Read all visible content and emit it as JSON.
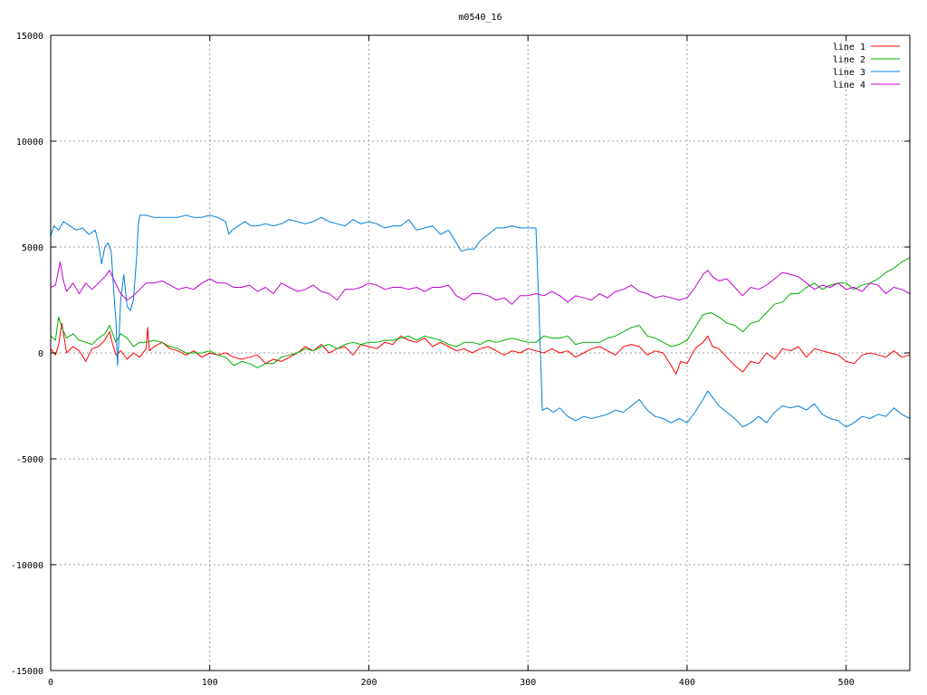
{
  "chart_data": {
    "type": "line",
    "title": "m0540_16",
    "xlim": [
      0,
      540
    ],
    "ylim": [
      -15000,
      15000
    ],
    "grid": true,
    "legend_position": "top-right",
    "xticks": [
      0,
      100,
      200,
      300,
      400,
      500
    ],
    "yticks": [
      -15000,
      -10000,
      -5000,
      0,
      5000,
      10000,
      15000
    ],
    "series": [
      {
        "name": "line 1",
        "color": "#ff0000",
        "x": [
          0,
          3,
          5,
          7,
          10,
          14,
          18,
          22,
          26,
          30,
          34,
          37,
          39,
          41,
          44,
          48,
          52,
          56,
          60,
          61,
          62,
          65,
          70,
          75,
          80,
          85,
          90,
          95,
          100,
          105,
          110,
          115,
          120,
          125,
          130,
          135,
          140,
          145,
          150,
          155,
          160,
          165,
          170,
          175,
          180,
          185,
          190,
          195,
          200,
          205,
          210,
          215,
          220,
          225,
          230,
          235,
          240,
          245,
          250,
          255,
          260,
          265,
          270,
          275,
          280,
          285,
          290,
          295,
          300,
          305,
          310,
          315,
          320,
          325,
          330,
          335,
          340,
          345,
          350,
          355,
          360,
          365,
          370,
          375,
          380,
          385,
          390,
          393,
          396,
          400,
          405,
          410,
          413,
          416,
          420,
          425,
          430,
          435,
          440,
          445,
          450,
          455,
          460,
          465,
          470,
          475,
          480,
          485,
          490,
          495,
          500,
          505,
          510,
          515,
          520,
          525,
          530,
          535,
          540
        ],
        "y": [
          200,
          -100,
          400,
          1400,
          0,
          300,
          100,
          -400,
          200,
          300,
          600,
          1000,
          400,
          -100,
          100,
          -300,
          0,
          -200,
          200,
          1200,
          100,
          300,
          500,
          200,
          100,
          -100,
          100,
          -200,
          0,
          -100,
          0,
          -200,
          -300,
          -200,
          -100,
          -500,
          -300,
          -400,
          -200,
          0,
          300,
          100,
          400,
          0,
          200,
          300,
          -100,
          400,
          300,
          200,
          500,
          400,
          800,
          600,
          500,
          700,
          300,
          500,
          300,
          100,
          200,
          0,
          200,
          300,
          100,
          -100,
          100,
          0,
          200,
          100,
          0,
          200,
          0,
          100,
          -200,
          0,
          200,
          300,
          100,
          -100,
          300,
          400,
          300,
          -100,
          100,
          0,
          -600,
          -1000,
          -400,
          -500,
          200,
          500,
          800,
          300,
          200,
          -200,
          -600,
          -900,
          -400,
          -500,
          0,
          -300,
          200,
          100,
          300,
          -200,
          200,
          100,
          0,
          -100,
          -400,
          -500,
          -100,
          0,
          -100,
          -200,
          100,
          -200,
          -100
        ]
      },
      {
        "name": "line 2",
        "color": "#00b000",
        "x": [
          0,
          3,
          5,
          7,
          10,
          14,
          18,
          22,
          26,
          30,
          34,
          37,
          39,
          41,
          44,
          48,
          52,
          56,
          60,
          65,
          70,
          75,
          80,
          85,
          90,
          95,
          100,
          105,
          110,
          115,
          120,
          125,
          130,
          135,
          140,
          145,
          150,
          155,
          160,
          165,
          170,
          175,
          180,
          185,
          190,
          195,
          200,
          205,
          210,
          215,
          220,
          225,
          230,
          235,
          240,
          245,
          250,
          255,
          260,
          265,
          270,
          275,
          280,
          285,
          290,
          295,
          300,
          305,
          310,
          315,
          320,
          325,
          330,
          335,
          340,
          345,
          350,
          355,
          360,
          365,
          370,
          375,
          380,
          385,
          390,
          395,
          400,
          405,
          410,
          415,
          420,
          425,
          430,
          435,
          440,
          445,
          450,
          455,
          460,
          465,
          470,
          475,
          480,
          485,
          490,
          495,
          500,
          505,
          510,
          515,
          520,
          525,
          530,
          535,
          540
        ],
        "y": [
          800,
          600,
          1700,
          1200,
          700,
          900,
          600,
          500,
          400,
          700,
          900,
          1300,
          900,
          500,
          900,
          700,
          300,
          500,
          500,
          600,
          500,
          300,
          200,
          0,
          0,
          0,
          100,
          -100,
          -200,
          -600,
          -400,
          -500,
          -700,
          -500,
          -500,
          -200,
          -100,
          0,
          200,
          100,
          300,
          400,
          200,
          400,
          500,
          400,
          500,
          500,
          600,
          600,
          700,
          800,
          600,
          800,
          700,
          600,
          400,
          300,
          500,
          500,
          400,
          600,
          500,
          600,
          700,
          600,
          500,
          500,
          800,
          700,
          700,
          800,
          400,
          500,
          500,
          500,
          700,
          800,
          1000,
          1200,
          1300,
          800,
          700,
          500,
          300,
          400,
          600,
          1200,
          1800,
          1900,
          1700,
          1400,
          1300,
          1000,
          1400,
          1500,
          1900,
          2300,
          2400,
          2800,
          2800,
          3100,
          3300,
          3000,
          3200,
          3300,
          3300,
          3000,
          3200,
          3300,
          3500,
          3800,
          4000,
          4300,
          4500
        ],
        "y_note": ""
      },
      {
        "name": "line 3",
        "color": "#0080e0",
        "x": [
          0,
          2,
          5,
          8,
          12,
          16,
          20,
          24,
          28,
          30,
          32,
          34,
          36,
          38,
          40,
          41,
          42,
          43,
          44,
          46,
          48,
          50,
          52,
          54,
          55,
          56,
          60,
          65,
          70,
          75,
          80,
          85,
          90,
          95,
          100,
          105,
          110,
          112,
          114,
          118,
          122,
          126,
          130,
          135,
          140,
          145,
          150,
          155,
          160,
          165,
          170,
          175,
          180,
          185,
          190,
          195,
          200,
          205,
          210,
          215,
          220,
          225,
          230,
          235,
          240,
          245,
          250,
          255,
          258,
          262,
          266,
          270,
          275,
          280,
          285,
          290,
          295,
          300,
          305,
          307,
          309,
          312,
          316,
          320,
          325,
          330,
          335,
          340,
          345,
          350,
          355,
          360,
          365,
          370,
          375,
          380,
          385,
          390,
          395,
          400,
          405,
          410,
          413,
          416,
          420,
          425,
          430,
          435,
          440,
          445,
          450,
          455,
          460,
          465,
          470,
          475,
          480,
          485,
          490,
          495,
          500,
          505,
          510,
          515,
          520,
          525,
          530,
          535,
          540
        ],
        "y": [
          5500,
          6000,
          5800,
          6200,
          6000,
          5800,
          5900,
          5600,
          5800,
          5200,
          4200,
          5000,
          5200,
          4800,
          2500,
          1500,
          -600,
          800,
          2500,
          3700,
          2200,
          2000,
          2500,
          4500,
          6000,
          6500,
          6500,
          6400,
          6400,
          6400,
          6400,
          6500,
          6400,
          6400,
          6500,
          6400,
          6200,
          5600,
          5800,
          6000,
          6200,
          6000,
          6000,
          6100,
          6000,
          6100,
          6300,
          6200,
          6100,
          6200,
          6400,
          6200,
          6100,
          6000,
          6300,
          6100,
          6200,
          6100,
          5900,
          6000,
          6000,
          6300,
          5800,
          5900,
          6000,
          5600,
          5800,
          5200,
          4800,
          4900,
          4900,
          5300,
          5600,
          5900,
          5900,
          6000,
          5900,
          5900,
          5900,
          2000,
          -2700,
          -2600,
          -2800,
          -2600,
          -3000,
          -3200,
          -3000,
          -3100,
          -3000,
          -2900,
          -2700,
          -2800,
          -2500,
          -2200,
          -2700,
          -3000,
          -3100,
          -3300,
          -3100,
          -3300,
          -2800,
          -2200,
          -1800,
          -2100,
          -2500,
          -2800,
          -3100,
          -3500,
          -3300,
          -3000,
          -3300,
          -2800,
          -2500,
          -2600,
          -2500,
          -2700,
          -2400,
          -2900,
          -3100,
          -3200,
          -3500,
          -3300,
          -3000,
          -3100,
          -2900,
          -3000,
          -2600,
          -2900,
          -3100
        ]
      },
      {
        "name": "line 4",
        "color": "#c000d0",
        "x": [
          0,
          3,
          6,
          8,
          10,
          14,
          18,
          22,
          26,
          30,
          34,
          37,
          40,
          44,
          48,
          52,
          56,
          60,
          65,
          70,
          75,
          80,
          85,
          90,
          95,
          100,
          105,
          110,
          115,
          120,
          125,
          130,
          135,
          140,
          145,
          150,
          155,
          160,
          165,
          170,
          175,
          180,
          185,
          190,
          195,
          200,
          205,
          210,
          215,
          220,
          225,
          230,
          235,
          240,
          245,
          250,
          255,
          260,
          265,
          270,
          275,
          280,
          285,
          290,
          295,
          300,
          305,
          310,
          315,
          320,
          325,
          330,
          335,
          340,
          345,
          350,
          355,
          360,
          365,
          370,
          375,
          380,
          385,
          390,
          395,
          400,
          405,
          410,
          413,
          416,
          420,
          425,
          430,
          435,
          440,
          445,
          450,
          455,
          460,
          465,
          470,
          475,
          480,
          485,
          490,
          495,
          500,
          505,
          510,
          515,
          520,
          525,
          530,
          535,
          540
        ],
        "y": [
          3100,
          3200,
          4300,
          3400,
          2900,
          3300,
          2800,
          3300,
          3000,
          3300,
          3600,
          3900,
          3400,
          2800,
          2500,
          2700,
          3000,
          3300,
          3300,
          3400,
          3200,
          3000,
          3100,
          3000,
          3300,
          3500,
          3300,
          3300,
          3100,
          3100,
          3200,
          2900,
          3100,
          2800,
          3300,
          3100,
          2900,
          3000,
          3200,
          2900,
          2800,
          2500,
          3000,
          3000,
          3100,
          3300,
          3200,
          3000,
          3100,
          3100,
          3000,
          3100,
          2900,
          3100,
          3100,
          3200,
          2700,
          2500,
          2800,
          2800,
          2700,
          2500,
          2600,
          2300,
          2700,
          2700,
          2800,
          2700,
          2900,
          2700,
          2400,
          2700,
          2600,
          2500,
          2800,
          2600,
          2900,
          3000,
          3200,
          2900,
          2800,
          2600,
          2700,
          2600,
          2500,
          2600,
          3100,
          3700,
          3900,
          3600,
          3400,
          3500,
          3100,
          2700,
          3100,
          3000,
          3200,
          3500,
          3800,
          3700,
          3600,
          3300,
          3000,
          3200,
          3100,
          3300,
          3000,
          3100,
          2900,
          3300,
          3200,
          2800,
          3100,
          3000,
          2800
        ]
      }
    ]
  }
}
